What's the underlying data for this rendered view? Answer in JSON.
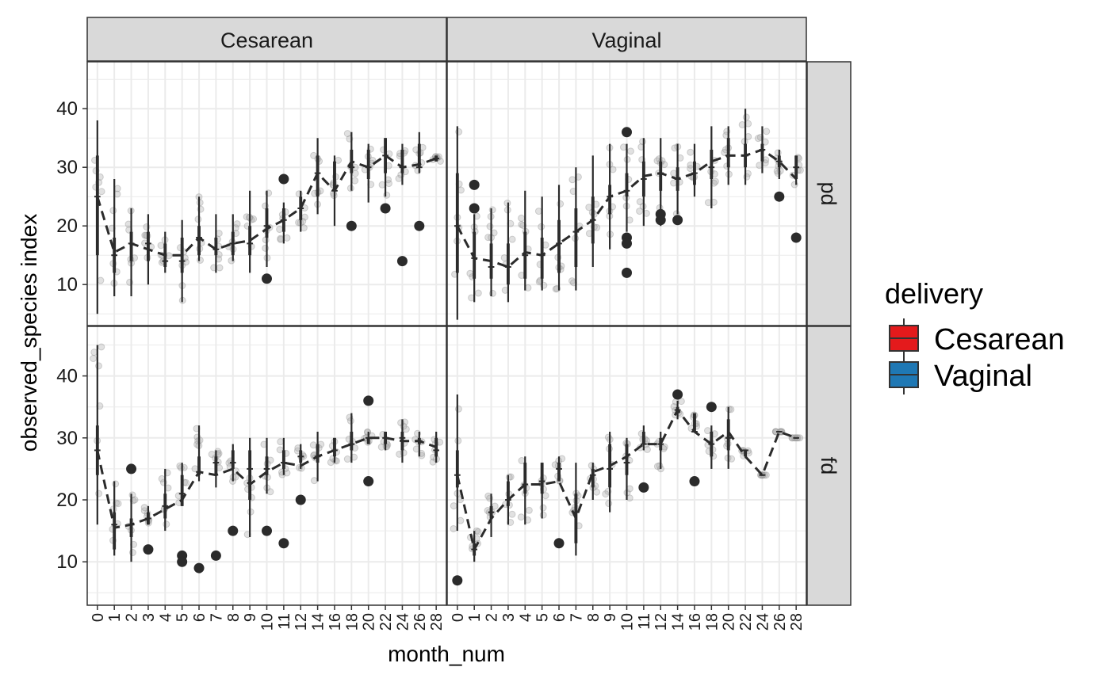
{
  "chart_data": {
    "type": "boxplot",
    "xlabel": "month_num",
    "ylabel": "observed_species index",
    "ylim": [
      3,
      48
    ],
    "yticks": [
      10,
      20,
      30,
      40
    ],
    "grid": true,
    "legend": {
      "title": "delivery",
      "position": "right",
      "entries": [
        {
          "label": "Cesarean",
          "color": "#e41a1c"
        },
        {
          "label": "Vaginal",
          "color": "#1f78b4"
        }
      ]
    },
    "colors": {
      "box": "#2b2b2b",
      "trend": "#2b2b2b",
      "jitter": "#aaaaaa",
      "strip_bg": "#d9d9d9",
      "grid": "#ebebeb"
    },
    "col_facets": [
      "Cesarean",
      "Vaginal"
    ],
    "row_facets": [
      "pd",
      "fd"
    ],
    "panels": [
      {
        "col": "Cesarean",
        "row": "pd",
        "x": [
          "0",
          "1",
          "2",
          "3",
          "4",
          "5",
          "6",
          "7",
          "8",
          "9",
          "10",
          "11",
          "12",
          "14",
          "16",
          "18",
          "20",
          "22",
          "24",
          "26",
          "28"
        ],
        "whisker_low": [
          5,
          8,
          8,
          10,
          12,
          7,
          14,
          12,
          14,
          12,
          13,
          17,
          19,
          22,
          20,
          26,
          24,
          25,
          27,
          29,
          31
        ],
        "q1": [
          15,
          12,
          14,
          14,
          13,
          12,
          15,
          15,
          15,
          15,
          18,
          19,
          21,
          25,
          26,
          29,
          28,
          29,
          29,
          30,
          31
        ],
        "median": [
          25,
          15,
          17,
          17,
          14,
          14,
          18,
          16,
          17,
          17,
          20,
          21,
          23,
          29,
          26,
          30,
          30,
          32,
          30,
          30,
          31.5
        ],
        "q3": [
          32,
          18,
          19,
          19,
          17,
          18,
          20,
          18,
          19,
          20,
          23,
          23,
          25,
          32,
          31,
          33,
          33,
          35,
          33,
          34,
          32
        ],
        "whisker_high": [
          38,
          28,
          23,
          22,
          19,
          21,
          25,
          22,
          22,
          26,
          26,
          24,
          26,
          35,
          32,
          36,
          34,
          35,
          34,
          36,
          32
        ],
        "trend": [
          25,
          15.5,
          17,
          16,
          15,
          15,
          18,
          16,
          17,
          17.5,
          19.5,
          21,
          23,
          29,
          26,
          31,
          30,
          32,
          30,
          30.5,
          31.5
        ],
        "outliers": [
          {
            "x": "10",
            "y": 11
          },
          {
            "x": "11",
            "y": 28
          },
          {
            "x": "18",
            "y": 20
          },
          {
            "x": "22",
            "y": 23
          },
          {
            "x": "24",
            "y": 14
          },
          {
            "x": "26",
            "y": 20
          }
        ]
      },
      {
        "col": "Vaginal",
        "row": "pd",
        "x": [
          "0",
          "1",
          "2",
          "3",
          "4",
          "5",
          "6",
          "7",
          "8",
          "9",
          "10",
          "11",
          "12",
          "14",
          "16",
          "18",
          "20",
          "22",
          "24",
          "26",
          "28"
        ],
        "whisker_low": [
          4,
          7,
          8,
          7,
          9,
          9,
          9,
          9,
          13,
          16,
          19,
          20,
          20,
          22,
          25,
          23,
          27,
          27,
          29,
          28,
          27
        ],
        "q1": [
          12,
          11,
          11,
          10,
          11,
          11,
          12,
          13,
          17,
          22,
          25,
          25,
          26,
          26,
          27,
          28,
          30,
          30,
          31,
          30,
          28
        ],
        "median": [
          20,
          14.5,
          13,
          13,
          15,
          15,
          17,
          19,
          21,
          25,
          26,
          28,
          29,
          28,
          29,
          30,
          32,
          32,
          33,
          31,
          30
        ],
        "q3": [
          29,
          19,
          17,
          17,
          19,
          18,
          21,
          23,
          25,
          27,
          29,
          31,
          31,
          30,
          31,
          33,
          35,
          34,
          34,
          32,
          32
        ],
        "whisker_high": [
          37,
          22,
          23,
          24,
          26,
          25,
          27,
          30,
          32,
          34,
          34,
          35,
          35,
          34,
          34,
          37,
          37,
          40,
          37,
          33,
          32
        ],
        "trend": [
          20,
          14.5,
          14,
          13,
          15.5,
          15,
          17,
          19,
          21,
          25,
          26,
          28.5,
          29,
          28,
          29,
          31,
          32,
          32,
          33,
          31,
          28
        ],
        "outliers": [
          {
            "x": "1",
            "y": 27
          },
          {
            "x": "1",
            "y": 23
          },
          {
            "x": "10",
            "y": 36
          },
          {
            "x": "10",
            "y": 18
          },
          {
            "x": "10",
            "y": 17
          },
          {
            "x": "10",
            "y": 12
          },
          {
            "x": "12",
            "y": 22
          },
          {
            "x": "12",
            "y": 21
          },
          {
            "x": "14",
            "y": 21
          },
          {
            "x": "26",
            "y": 25
          },
          {
            "x": "28",
            "y": 18
          }
        ]
      },
      {
        "col": "Cesarean",
        "row": "fd",
        "x": [
          "0",
          "1",
          "2",
          "3",
          "4",
          "5",
          "6",
          "7",
          "8",
          "9",
          "10",
          "11",
          "12",
          "14",
          "16",
          "18",
          "20",
          "22",
          "24",
          "26",
          "28"
        ],
        "whisker_low": [
          16,
          11,
          10,
          16,
          15,
          19,
          23,
          22,
          23,
          14,
          21,
          24,
          25,
          23,
          26,
          26,
          29,
          28,
          26,
          27,
          26
        ],
        "q1": [
          24,
          12,
          14,
          16,
          17,
          19,
          24,
          24,
          25,
          20,
          24,
          25,
          26,
          26,
          27,
          28,
          29,
          29,
          28,
          29,
          27
        ],
        "median": [
          28,
          16,
          16,
          17,
          19,
          21,
          24.5,
          26,
          26,
          25,
          25,
          26,
          27,
          27,
          28,
          29,
          30,
          30,
          30,
          29.5,
          28
        ],
        "q3": [
          32,
          18,
          17,
          18,
          21,
          24,
          27,
          27,
          28,
          28,
          27,
          28,
          28,
          29,
          30,
          31,
          30,
          31,
          31,
          30,
          30
        ],
        "whisker_high": [
          45,
          23,
          21,
          19,
          25,
          26,
          32,
          28,
          29,
          30,
          30,
          30,
          29,
          31,
          30,
          34,
          31,
          31,
          33,
          31,
          31
        ],
        "trend": [
          28,
          15.5,
          16,
          17,
          18.5,
          20,
          24.5,
          24,
          25,
          22.5,
          24.5,
          26,
          25.5,
          27,
          28,
          29,
          30,
          30,
          29.5,
          29.5,
          28.5
        ],
        "outliers": [
          {
            "x": "2",
            "y": 25
          },
          {
            "x": "3",
            "y": 12
          },
          {
            "x": "5",
            "y": 11
          },
          {
            "x": "5",
            "y": 10
          },
          {
            "x": "6",
            "y": 9
          },
          {
            "x": "7",
            "y": 11
          },
          {
            "x": "8",
            "y": 15
          },
          {
            "x": "10",
            "y": 15
          },
          {
            "x": "11",
            "y": 13
          },
          {
            "x": "12",
            "y": 20
          },
          {
            "x": "20",
            "y": 36
          },
          {
            "x": "20",
            "y": 23
          }
        ]
      },
      {
        "col": "Vaginal",
        "row": "fd",
        "x": [
          "0",
          "1",
          "2",
          "3",
          "4",
          "5",
          "6",
          "7",
          "8",
          "9",
          "10",
          "11",
          "12",
          "14",
          "16",
          "18",
          "20",
          "22",
          "24",
          "26",
          "28"
        ],
        "whisker_low": [
          15,
          10,
          14,
          16,
          16,
          17,
          23,
          11,
          20,
          18,
          20,
          28,
          25,
          33,
          31,
          25,
          25,
          27,
          24,
          31,
          30
        ],
        "q1": [
          22,
          11,
          17,
          19,
          21,
          21,
          23,
          13,
          22,
          22,
          24,
          29,
          28,
          34,
          31,
          27,
          28,
          27,
          24,
          31,
          30
        ],
        "median": [
          24,
          12,
          18,
          20,
          22.5,
          23,
          25,
          18,
          24,
          25,
          26,
          29,
          29,
          34.5,
          31,
          29,
          30,
          28,
          24,
          31,
          30
        ],
        "q3": [
          28,
          13,
          19,
          23,
          26,
          26,
          26,
          21,
          25,
          29,
          29,
          31,
          30,
          35,
          34,
          31,
          33,
          28,
          24,
          31,
          30
        ],
        "whisker_high": [
          37,
          15,
          21,
          24,
          27,
          26,
          27,
          26,
          26,
          31,
          30,
          32,
          31,
          36,
          34,
          32,
          35,
          28,
          24,
          31,
          30
        ],
        "trend": [
          24,
          12,
          17,
          20,
          22.5,
          22.5,
          23,
          17,
          24.5,
          25.5,
          27,
          29,
          29,
          34.5,
          31,
          29,
          31,
          27,
          24,
          31,
          30
        ],
        "outliers": [
          {
            "x": "0",
            "y": 7
          },
          {
            "x": "6",
            "y": 13
          },
          {
            "x": "11",
            "y": 22
          },
          {
            "x": "14",
            "y": 37
          },
          {
            "x": "16",
            "y": 23
          },
          {
            "x": "18",
            "y": 35
          }
        ]
      }
    ]
  }
}
